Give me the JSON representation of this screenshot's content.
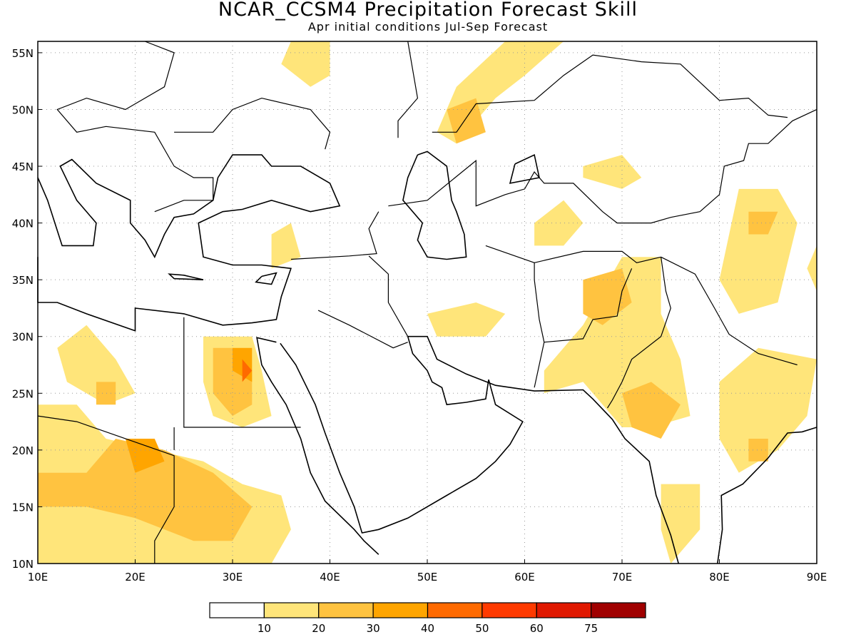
{
  "title": "NCAR_CCSM4 Precipitation Forecast Skill",
  "subtitle": "Apr initial conditions  Jul-Sep Forecast",
  "map": {
    "lon_range": [
      10,
      90
    ],
    "lat_range": [
      10,
      56
    ],
    "lon_ticks": [
      {
        "value": 10,
        "label": "10E"
      },
      {
        "value": 20,
        "label": "20E"
      },
      {
        "value": 30,
        "label": "30E"
      },
      {
        "value": 40,
        "label": "40E"
      },
      {
        "value": 50,
        "label": "50E"
      },
      {
        "value": 60,
        "label": "60E"
      },
      {
        "value": 70,
        "label": "70E"
      },
      {
        "value": 80,
        "label": "80E"
      },
      {
        "value": 90,
        "label": "90E"
      }
    ],
    "lat_ticks": [
      {
        "value": 10,
        "label": "10N"
      },
      {
        "value": 15,
        "label": "15N"
      },
      {
        "value": 20,
        "label": "20N"
      },
      {
        "value": 25,
        "label": "25N"
      },
      {
        "value": 30,
        "label": "30N"
      },
      {
        "value": 35,
        "label": "35N"
      },
      {
        "value": 40,
        "label": "40N"
      },
      {
        "value": 45,
        "label": "45N"
      },
      {
        "value": 50,
        "label": "50N"
      },
      {
        "value": 55,
        "label": "55N"
      }
    ],
    "grid": true,
    "skill_regions": [
      {
        "level": 1,
        "lonlat": [
          [
            10,
            24
          ],
          [
            14,
            24
          ],
          [
            17,
            21
          ],
          [
            22,
            20
          ],
          [
            27,
            19
          ],
          [
            31,
            17
          ],
          [
            35,
            16
          ],
          [
            36,
            13
          ],
          [
            34,
            10
          ],
          [
            10,
            10
          ]
        ]
      },
      {
        "level": 1,
        "lonlat": [
          [
            12,
            29
          ],
          [
            15,
            31
          ],
          [
            18,
            28
          ],
          [
            20,
            25
          ],
          [
            17,
            24
          ],
          [
            13,
            26
          ]
        ]
      },
      {
        "level": 1,
        "lonlat": [
          [
            27,
            30
          ],
          [
            32,
            30
          ],
          [
            33,
            27
          ],
          [
            34,
            23
          ],
          [
            31,
            22
          ],
          [
            28,
            23
          ],
          [
            27,
            26
          ]
        ]
      },
      {
        "level": 1,
        "lonlat": [
          [
            36,
            56
          ],
          [
            40,
            56
          ],
          [
            40,
            53
          ],
          [
            38,
            52
          ],
          [
            35,
            54
          ]
        ]
      },
      {
        "level": 1,
        "lonlat": [
          [
            51,
            48
          ],
          [
            53,
            52
          ],
          [
            58,
            56
          ],
          [
            64,
            56
          ],
          [
            60,
            53
          ],
          [
            57,
            51
          ],
          [
            53,
            47
          ]
        ]
      },
      {
        "level": 1,
        "lonlat": [
          [
            61,
            40
          ],
          [
            64,
            42
          ],
          [
            66,
            40
          ],
          [
            64,
            38
          ],
          [
            61,
            38
          ]
        ]
      },
      {
        "level": 1,
        "lonlat": [
          [
            66,
            45
          ],
          [
            70,
            46
          ],
          [
            72,
            44
          ],
          [
            70,
            43
          ],
          [
            66,
            44
          ]
        ]
      },
      {
        "level": 1,
        "lonlat": [
          [
            62,
            27
          ],
          [
            66,
            31
          ],
          [
            70,
            37
          ],
          [
            74,
            37
          ],
          [
            74,
            32
          ],
          [
            76,
            28
          ],
          [
            77,
            23
          ],
          [
            73,
            22
          ],
          [
            70,
            22
          ],
          [
            66,
            26
          ],
          [
            62,
            25
          ]
        ]
      },
      {
        "level": 1,
        "lonlat": [
          [
            50,
            32
          ],
          [
            55,
            33
          ],
          [
            58,
            32
          ],
          [
            56,
            30
          ],
          [
            51,
            30
          ]
        ]
      },
      {
        "level": 1,
        "lonlat": [
          [
            80,
            35
          ],
          [
            82,
            43
          ],
          [
            86,
            43
          ],
          [
            88,
            40
          ],
          [
            86,
            33
          ],
          [
            82,
            32
          ]
        ]
      },
      {
        "level": 1,
        "lonlat": [
          [
            80,
            26
          ],
          [
            84,
            29
          ],
          [
            90,
            28
          ],
          [
            89,
            23
          ],
          [
            86,
            20
          ],
          [
            82,
            18
          ],
          [
            80,
            21
          ]
        ]
      },
      {
        "level": 1,
        "lonlat": [
          [
            74,
            17
          ],
          [
            78,
            17
          ],
          [
            78,
            13
          ],
          [
            75,
            10
          ],
          [
            74,
            13
          ]
        ]
      },
      {
        "level": 1,
        "lonlat": [
          [
            34,
            39
          ],
          [
            36,
            40
          ],
          [
            37,
            37
          ],
          [
            34,
            36
          ]
        ]
      },
      {
        "level": 1,
        "lonlat": [
          [
            89,
            36
          ],
          [
            90,
            38
          ],
          [
            90,
            34
          ]
        ]
      },
      {
        "level": 2,
        "lonlat": [
          [
            10,
            18
          ],
          [
            15,
            18
          ],
          [
            18,
            21
          ],
          [
            23,
            20
          ],
          [
            28,
            18
          ],
          [
            32,
            15
          ],
          [
            30,
            12
          ],
          [
            26,
            12
          ],
          [
            20,
            14
          ],
          [
            15,
            15
          ],
          [
            10,
            15
          ]
        ]
      },
      {
        "level": 2,
        "lonlat": [
          [
            28,
            29
          ],
          [
            30,
            29
          ],
          [
            32,
            27
          ],
          [
            32,
            24
          ],
          [
            30,
            23
          ],
          [
            28,
            25
          ]
        ]
      },
      {
        "level": 2,
        "lonlat": [
          [
            52,
            50
          ],
          [
            55,
            51
          ],
          [
            56,
            48
          ],
          [
            53,
            47
          ]
        ]
      },
      {
        "level": 2,
        "lonlat": [
          [
            66,
            35
          ],
          [
            70,
            36
          ],
          [
            71,
            33
          ],
          [
            68,
            31
          ],
          [
            66,
            32
          ]
        ]
      },
      {
        "level": 2,
        "lonlat": [
          [
            70,
            25
          ],
          [
            73,
            26
          ],
          [
            76,
            24
          ],
          [
            74,
            21
          ],
          [
            71,
            22
          ]
        ]
      },
      {
        "level": 2,
        "lonlat": [
          [
            83,
            21
          ],
          [
            85,
            21
          ],
          [
            85,
            19
          ],
          [
            83,
            19
          ]
        ]
      },
      {
        "level": 2,
        "lonlat": [
          [
            83,
            41
          ],
          [
            86,
            41
          ],
          [
            85,
            39
          ],
          [
            83,
            39
          ]
        ]
      },
      {
        "level": 2,
        "lonlat": [
          [
            16,
            26
          ],
          [
            18,
            26
          ],
          [
            18,
            24
          ],
          [
            16,
            24
          ]
        ]
      },
      {
        "level": 3,
        "lonlat": [
          [
            19,
            21
          ],
          [
            22,
            21
          ],
          [
            23,
            19
          ],
          [
            20,
            18
          ]
        ]
      },
      {
        "level": 3,
        "lonlat": [
          [
            30,
            29
          ],
          [
            32,
            29
          ],
          [
            32,
            26
          ],
          [
            30,
            27
          ]
        ]
      },
      {
        "level": 4,
        "lonlat": [
          [
            31,
            28
          ],
          [
            32,
            27
          ],
          [
            31,
            26
          ]
        ]
      }
    ]
  },
  "colorbar": {
    "colors": [
      "#ffffff",
      "#ffe57a",
      "#ffc340",
      "#ffa500",
      "#ff6a00",
      "#ff3a00",
      "#e01800",
      "#a00000"
    ],
    "labels": [
      "10",
      "20",
      "30",
      "40",
      "50",
      "60",
      "75"
    ]
  }
}
